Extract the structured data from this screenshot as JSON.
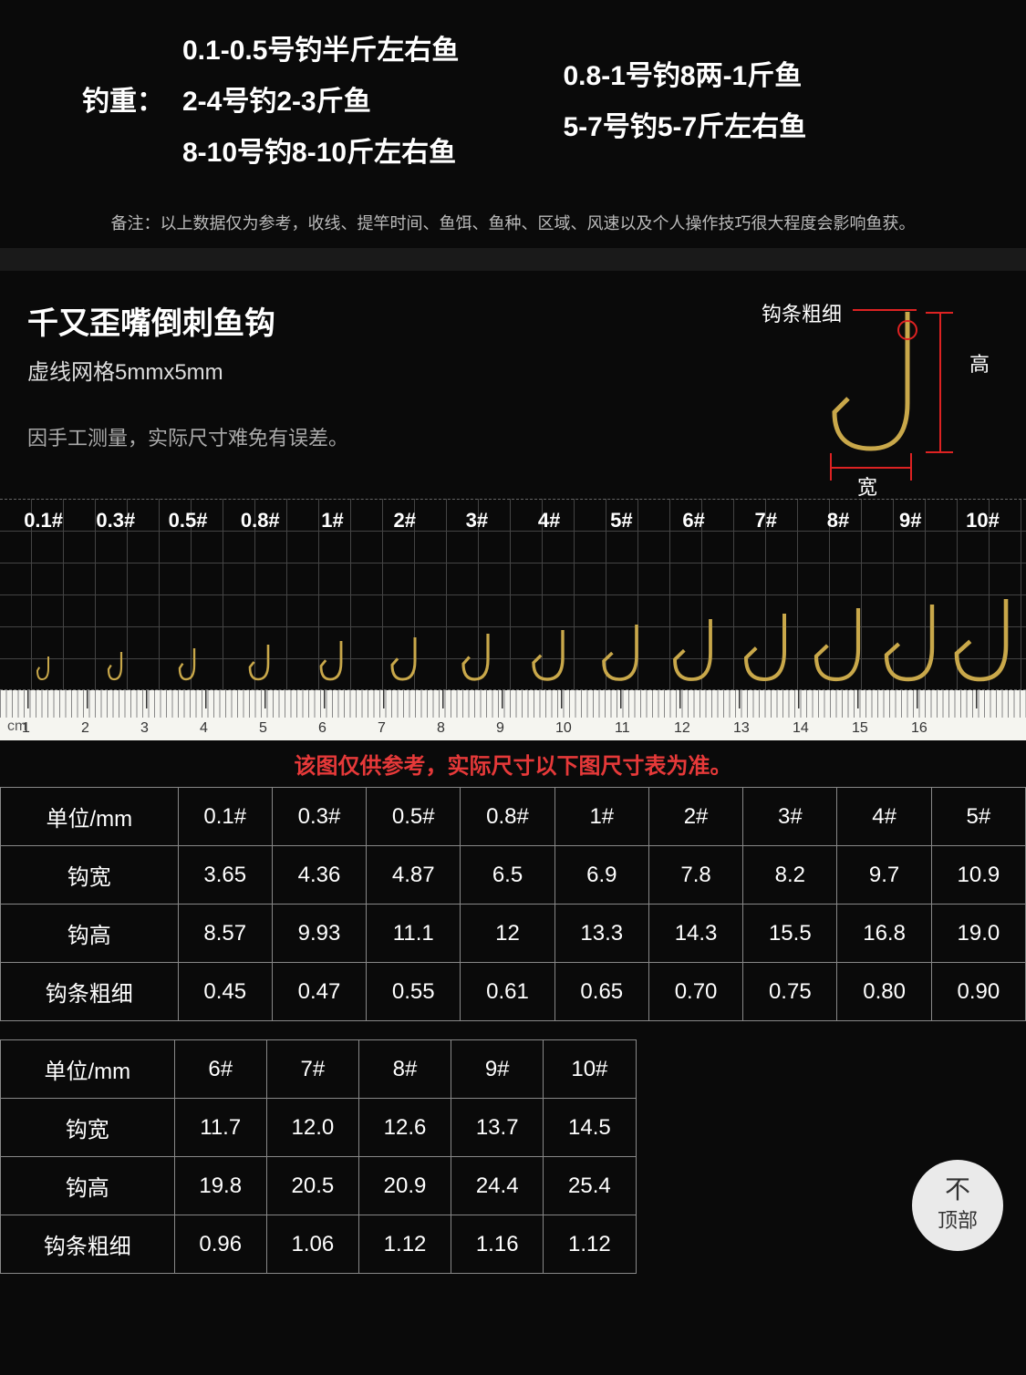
{
  "weight": {
    "label": "钓重：",
    "items": [
      "0.1-0.5号钓半斤左右鱼",
      "0.8-1号钓8两-1斤鱼",
      "2-4号钓2-3斤鱼",
      "5-7号钓5-7斤左右鱼",
      "8-10号钓8-10斤左右鱼"
    ]
  },
  "note": "备注：以上数据仅为参考，收线、提竿时间、鱼饵、鱼种、区域、风速以及个人操作技巧很大程度会影响鱼获。",
  "product_title": "千又歪嘴倒刺鱼钩",
  "grid_note": "虚线网格5mmx5mm",
  "measure_note": "因手工测量，实际尺寸难免有误差。",
  "diagram": {
    "thickness_label": "钩条粗细",
    "height_label": "高",
    "width_label": "宽"
  },
  "hook_sizes": [
    "0.1#",
    "0.3#",
    "0.5#",
    "0.8#",
    "1#",
    "2#",
    "3#",
    "4#",
    "5#",
    "6#",
    "7#",
    "8#",
    "9#",
    "10#"
  ],
  "hook_icon_heights": [
    25,
    30,
    34,
    38,
    42,
    46,
    50,
    54,
    60,
    66,
    72,
    78,
    82,
    88
  ],
  "hook_icon_widths": [
    14,
    16,
    18,
    22,
    24,
    27,
    29,
    34,
    38,
    41,
    44,
    48,
    52,
    56
  ],
  "hook_color": "#c9a84a",
  "ruler_unit": "cm",
  "ruler_ticks": [
    "1",
    "2",
    "3",
    "4",
    "5",
    "6",
    "7",
    "8",
    "9",
    "10",
    "11",
    "12",
    "13",
    "14",
    "15",
    "16"
  ],
  "warn_text": "该图仅供参考，实际尺寸以下图尺寸表为准。",
  "table1": {
    "header": [
      "单位/mm",
      "0.1#",
      "0.3#",
      "0.5#",
      "0.8#",
      "1#",
      "2#",
      "3#",
      "4#",
      "5#"
    ],
    "rows": [
      [
        "钩宽",
        "3.65",
        "4.36",
        "4.87",
        "6.5",
        "6.9",
        "7.8",
        "8.2",
        "9.7",
        "10.9"
      ],
      [
        "钩高",
        "8.57",
        "9.93",
        "11.1",
        "12",
        "13.3",
        "14.3",
        "15.5",
        "16.8",
        "19.0"
      ],
      [
        "钩条粗细",
        "0.45",
        "0.47",
        "0.55",
        "0.61",
        "0.65",
        "0.70",
        "0.75",
        "0.80",
        "0.90"
      ]
    ]
  },
  "table2": {
    "header": [
      "单位/mm",
      "6#",
      "7#",
      "8#",
      "9#",
      "10#"
    ],
    "rows": [
      [
        "钩宽",
        "11.7",
        "12.0",
        "12.6",
        "13.7",
        "14.5"
      ],
      [
        "钩高",
        "19.8",
        "20.5",
        "20.9",
        "24.4",
        "25.4"
      ],
      [
        "钩条粗细",
        "0.96",
        "1.06",
        "1.12",
        "1.16",
        "1.12"
      ]
    ]
  },
  "back_top": {
    "arrow": "不",
    "label": "顶部"
  },
  "colors": {
    "bg": "#0a0a0a",
    "text": "#ffffff",
    "muted": "#aaaaaa",
    "warn": "#e63939",
    "border": "#888888",
    "ruler_bg": "#f5f5f0",
    "red": "#d22222"
  }
}
